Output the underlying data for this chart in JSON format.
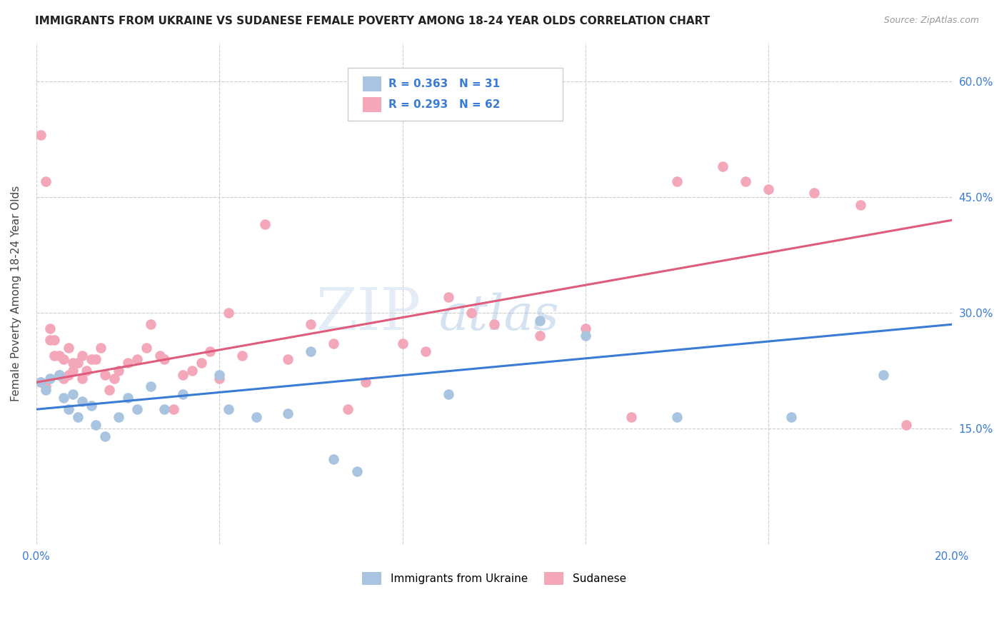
{
  "title": "IMMIGRANTS FROM UKRAINE VS SUDANESE FEMALE POVERTY AMONG 18-24 YEAR OLDS CORRELATION CHART",
  "source": "Source: ZipAtlas.com",
  "ylabel": "Female Poverty Among 18-24 Year Olds",
  "xlim": [
    0.0,
    0.2
  ],
  "ylim": [
    0.0,
    0.65
  ],
  "x_ticks": [
    0.0,
    0.04,
    0.08,
    0.12,
    0.16,
    0.2
  ],
  "y_ticks": [
    0.0,
    0.15,
    0.3,
    0.45,
    0.6
  ],
  "ukraine_R": 0.363,
  "ukraine_N": 31,
  "sudanese_R": 0.293,
  "sudanese_N": 62,
  "ukraine_color": "#a8c4e0",
  "sudanese_color": "#f4a7b9",
  "ukraine_line_color": "#3a7bd5",
  "sudanese_line_color": "#e05a7a",
  "watermark": "ZIPatlas",
  "ukraine_x": [
    0.001,
    0.002,
    0.003,
    0.005,
    0.006,
    0.007,
    0.008,
    0.009,
    0.01,
    0.012,
    0.013,
    0.015,
    0.018,
    0.02,
    0.022,
    0.025,
    0.028,
    0.032,
    0.04,
    0.042,
    0.048,
    0.055,
    0.06,
    0.065,
    0.07,
    0.09,
    0.11,
    0.12,
    0.14,
    0.165,
    0.185
  ],
  "ukraine_y": [
    0.21,
    0.2,
    0.215,
    0.22,
    0.19,
    0.175,
    0.195,
    0.165,
    0.185,
    0.18,
    0.155,
    0.14,
    0.165,
    0.19,
    0.175,
    0.205,
    0.175,
    0.195,
    0.22,
    0.175,
    0.165,
    0.17,
    0.25,
    0.11,
    0.095,
    0.195,
    0.29,
    0.27,
    0.165,
    0.165,
    0.22
  ],
  "sudanese_x": [
    0.001,
    0.001,
    0.002,
    0.002,
    0.003,
    0.003,
    0.004,
    0.004,
    0.005,
    0.005,
    0.006,
    0.006,
    0.007,
    0.007,
    0.008,
    0.008,
    0.009,
    0.01,
    0.01,
    0.011,
    0.012,
    0.013,
    0.014,
    0.015,
    0.016,
    0.017,
    0.018,
    0.02,
    0.022,
    0.024,
    0.025,
    0.027,
    0.028,
    0.03,
    0.032,
    0.034,
    0.036,
    0.038,
    0.04,
    0.042,
    0.045,
    0.05,
    0.055,
    0.06,
    0.065,
    0.068,
    0.072,
    0.08,
    0.085,
    0.09,
    0.095,
    0.1,
    0.11,
    0.12,
    0.13,
    0.14,
    0.15,
    0.155,
    0.16,
    0.17,
    0.18,
    0.19
  ],
  "sudanese_y": [
    0.53,
    0.21,
    0.47,
    0.205,
    0.265,
    0.28,
    0.265,
    0.245,
    0.245,
    0.22,
    0.24,
    0.215,
    0.22,
    0.255,
    0.235,
    0.225,
    0.235,
    0.245,
    0.215,
    0.225,
    0.24,
    0.24,
    0.255,
    0.22,
    0.2,
    0.215,
    0.225,
    0.235,
    0.24,
    0.255,
    0.285,
    0.245,
    0.24,
    0.175,
    0.22,
    0.225,
    0.235,
    0.25,
    0.215,
    0.3,
    0.245,
    0.415,
    0.24,
    0.285,
    0.26,
    0.175,
    0.21,
    0.26,
    0.25,
    0.32,
    0.3,
    0.285,
    0.27,
    0.28,
    0.165,
    0.47,
    0.49,
    0.47,
    0.46,
    0.455,
    0.44,
    0.155
  ]
}
